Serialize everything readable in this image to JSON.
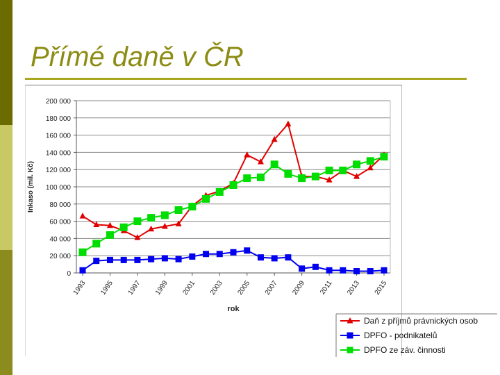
{
  "slide": {
    "title": "Přímé daně v ČR"
  },
  "colors": {
    "accent": "#8c8c14",
    "sidebar_dark": "#6b6b00",
    "sidebar_light": "#c8c864"
  },
  "chart_data": {
    "type": "line",
    "title": "",
    "xlabel": "rok",
    "ylabel": "Inkaso (mil. Kč)",
    "x": [
      1993,
      1994,
      1995,
      1996,
      1997,
      1998,
      1999,
      2000,
      2001,
      2002,
      2003,
      2004,
      2005,
      2006,
      2007,
      2008,
      2009,
      2010,
      2011,
      2012,
      2013,
      2014,
      2015
    ],
    "x_tick_labels": [
      "1993",
      "1995",
      "1997",
      "1999",
      "2001",
      "2003",
      "2005",
      "2007",
      "2009",
      "2011",
      "2013",
      "2015"
    ],
    "y_tick_labels": [
      "0",
      "20 000",
      "40 000",
      "60 000",
      "80 000",
      "100 000",
      "120 000",
      "140 000",
      "160 000",
      "180 000",
      "200 000"
    ],
    "ylim": [
      0,
      200000
    ],
    "grid": "horizontal",
    "legend_position": "bottom-right",
    "series": [
      {
        "name": "Daň z příjmů právnických osob",
        "color": "#e00000",
        "marker": "triangle",
        "values": [
          66000,
          56000,
          55000,
          49000,
          41000,
          51000,
          54000,
          57000,
          78000,
          90000,
          95000,
          104000,
          137000,
          129000,
          155000,
          173000,
          112000,
          112000,
          108000,
          119000,
          112000,
          122000,
          137000
        ]
      },
      {
        "name": "DPFO - podnikatelů",
        "color": "#0000ee",
        "marker": "square",
        "values": [
          3000,
          14000,
          15000,
          15000,
          15000,
          16000,
          17000,
          16000,
          19000,
          22000,
          22000,
          24000,
          26000,
          18000,
          17000,
          18000,
          5000,
          7000,
          3000,
          3000,
          2000,
          2000,
          3000
        ]
      },
      {
        "name": "DPFO ze záv. činnosti",
        "color": "#00dd00",
        "marker": "square",
        "values": [
          24000,
          34000,
          44000,
          53000,
          60000,
          64000,
          67000,
          73000,
          77000,
          86000,
          94000,
          102000,
          110000,
          111000,
          126000,
          115000,
          110000,
          112000,
          119000,
          119000,
          126000,
          130000,
          135000
        ]
      }
    ]
  }
}
